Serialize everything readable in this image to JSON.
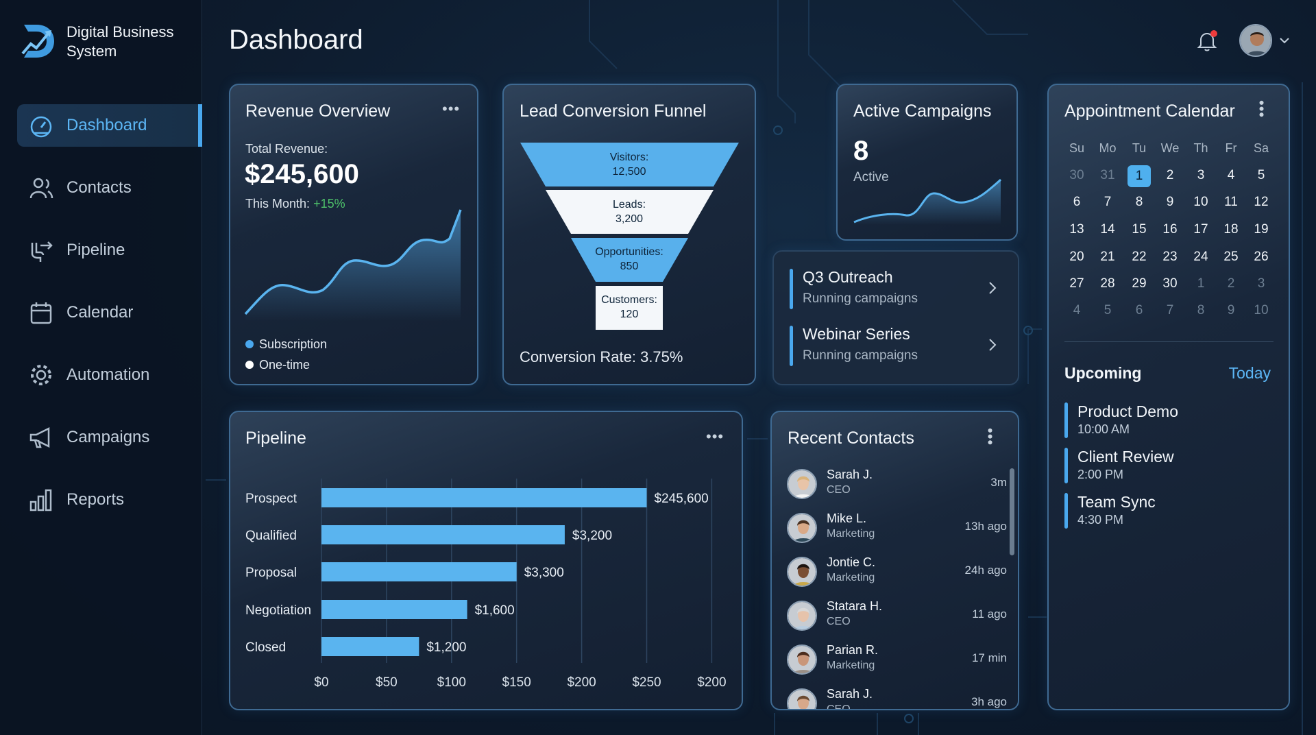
{
  "brand": {
    "name_line1": "Digital Business",
    "name_line2": "System",
    "logo": "D-chart-logo"
  },
  "header": {
    "title": "Dashboard",
    "notification_icon": "bell-icon",
    "has_notification": true,
    "avatar": "user-avatar",
    "menu_icon": "chevron-down-icon"
  },
  "sidebar": {
    "items": [
      {
        "label": "Dashboard",
        "icon": "gauge-icon",
        "active": true
      },
      {
        "label": "Contacts",
        "icon": "users-icon"
      },
      {
        "label": "Pipeline",
        "icon": "pipeline-arrow-icon"
      },
      {
        "label": "Calendar",
        "icon": "calendar-icon"
      },
      {
        "label": "Automation",
        "icon": "gear-icon"
      },
      {
        "label": "Campaigns",
        "icon": "megaphone-icon"
      },
      {
        "label": "Reports",
        "icon": "bar-chart-icon"
      }
    ]
  },
  "revenue": {
    "title": "Revenue Overview",
    "total_label": "Total Revenue:",
    "total_value": "$245,600",
    "month_label": "This Month:",
    "month_change": "+15%",
    "legend": [
      {
        "label": "Subscription",
        "color": "#4aa8ee"
      },
      {
        "label": "One-time",
        "color": "#ffffff"
      }
    ]
  },
  "funnel": {
    "title": "Lead Conversion Funnel",
    "stages": [
      {
        "label": "Visitors:",
        "value": "12,500"
      },
      {
        "label": "Leads:",
        "value": "3,200"
      },
      {
        "label": "Opportunities:",
        "value": "850"
      },
      {
        "label": "Customers:",
        "value": "120"
      }
    ],
    "conversion": "Conversion Rate: 3.75%"
  },
  "campaigns": {
    "title": "Active Campaigns",
    "count": "8",
    "count_label": "Active",
    "items": [
      {
        "name": "Q3 Outreach",
        "status": "Running campaigns"
      },
      {
        "name": "Webinar Series",
        "status": "Running campaigns"
      }
    ]
  },
  "calendar": {
    "title": "Appointment Calendar",
    "weekdays": [
      "Su",
      "Mo",
      "Tu",
      "We",
      "Th",
      "Fr",
      "Sa"
    ],
    "days": [
      [
        "30",
        1
      ],
      [
        "31",
        1
      ],
      [
        "1",
        2
      ],
      [
        "2",
        0
      ],
      [
        "3",
        0
      ],
      [
        "4",
        0
      ],
      [
        "5",
        0
      ],
      [
        "6",
        0
      ],
      [
        "7",
        0
      ],
      [
        "8",
        0
      ],
      [
        "9",
        0
      ],
      [
        "10",
        0
      ],
      [
        "11",
        0
      ],
      [
        "12",
        0
      ],
      [
        "13",
        0
      ],
      [
        "14",
        0
      ],
      [
        "15",
        0
      ],
      [
        "16",
        0
      ],
      [
        "17",
        0
      ],
      [
        "18",
        0
      ],
      [
        "19",
        0
      ],
      [
        "20",
        0
      ],
      [
        "21",
        0
      ],
      [
        "22",
        0
      ],
      [
        "23",
        0
      ],
      [
        "24",
        0
      ],
      [
        "25",
        0
      ],
      [
        "26",
        0
      ],
      [
        "27",
        0
      ],
      [
        "28",
        0
      ],
      [
        "29",
        0
      ],
      [
        "30",
        0
      ],
      [
        "1",
        1
      ],
      [
        "2",
        1
      ],
      [
        "3",
        1
      ],
      [
        "4",
        1
      ],
      [
        "5",
        1
      ],
      [
        "6",
        1
      ],
      [
        "7",
        1
      ],
      [
        "8",
        1
      ],
      [
        "9",
        1
      ],
      [
        "10",
        1
      ]
    ],
    "selected_day": "1",
    "upcoming_label": "Upcoming",
    "today_label": "Today",
    "events": [
      {
        "title": "Product Demo",
        "time": "10:00 AM"
      },
      {
        "title": "Client Review",
        "time": "2:00 PM"
      },
      {
        "title": "Team Sync",
        "time": "4:30 PM"
      }
    ]
  },
  "pipeline": {
    "title": "Pipeline"
  },
  "chart_data": {
    "type": "bar",
    "orientation": "horizontal",
    "categories": [
      "Prospect",
      "Qualified",
      "Proposal",
      "Negotiation",
      "Closed"
    ],
    "values": [
      250,
      187,
      150,
      112,
      75
    ],
    "data_labels": [
      "$245,600",
      "$3,200",
      "$3,300",
      "$1,600",
      "$1,200"
    ],
    "xticks": [
      "$0",
      "$50",
      "$100",
      "$150",
      "$200",
      "$250",
      "$200"
    ],
    "xlim": [
      0,
      300
    ],
    "grid": "vertical",
    "color": "#5ab4ef"
  },
  "contacts": {
    "title": "Recent Contacts",
    "items": [
      {
        "name": "Sarah J.",
        "role": "CEO",
        "time": "3m"
      },
      {
        "name": "Mike L.",
        "role": "Marketing",
        "time": "13h ago"
      },
      {
        "name": "Jontie C.",
        "role": "Marketing",
        "time": "24h ago"
      },
      {
        "name": "Statara H.",
        "role": "CEO",
        "time": "11 ago"
      },
      {
        "name": "Parian R.",
        "role": "Marketing",
        "time": "17 min"
      },
      {
        "name": "Sarah J.",
        "role": "CEO",
        "time": "3h ago"
      }
    ]
  }
}
